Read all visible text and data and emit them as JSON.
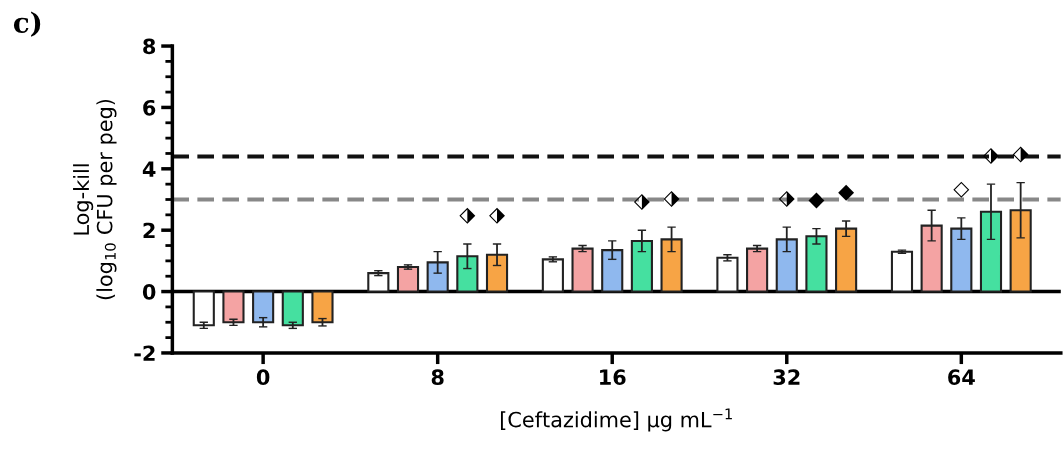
{
  "chart_data": {
    "type": "bar",
    "xlabel": "[Ceftazidime] μg mL$^{−1}$",
    "ylabel": "Log-kill\n(log$_{10}$ CFU per peg)",
    "categories": [
      "0",
      "8",
      "16",
      "32",
      "64"
    ],
    "series": [
      {
        "color": "#ffffff",
        "values": [
          -1.1,
          0.6,
          1.05,
          1.1,
          1.3
        ],
        "errors": [
          0.1,
          0.08,
          0.08,
          0.1,
          0.05
        ]
      },
      {
        "color": "#f4a3a3",
        "values": [
          -1.0,
          0.8,
          1.4,
          1.4,
          2.15
        ],
        "errors": [
          0.1,
          0.07,
          0.1,
          0.1,
          0.5
        ]
      },
      {
        "color": "#8fb8ee",
        "values": [
          -1.0,
          0.95,
          1.35,
          1.7,
          2.05
        ],
        "errors": [
          0.15,
          0.35,
          0.3,
          0.4,
          0.35
        ],
        "value_labels": [
          null,
          null,
          null,
          "⬗",
          "◇"
        ]
      },
      {
        "color": "#45e0a0",
        "values": [
          -1.1,
          1.15,
          1.65,
          1.8,
          2.6
        ],
        "errors": [
          0.1,
          0.4,
          0.35,
          0.25,
          0.9
        ],
        "value_labels": [
          null,
          "⬗",
          "⬗",
          "◆",
          "⬗"
        ]
      },
      {
        "color": "#f7a445",
        "values": [
          -1.0,
          1.2,
          1.7,
          2.05,
          2.65
        ],
        "errors": [
          0.12,
          0.35,
          0.4,
          0.25,
          0.9
        ],
        "value_labels": [
          null,
          "⬗",
          "⬗",
          "◆",
          "⬗"
        ]
      }
    ],
    "ylim": [
      -2,
      8
    ],
    "yticks": [
      {
        "value": -2,
        "label": "-2"
      },
      0,
      2,
      4,
      6,
      8
    ],
    "ref_lines": [
      {
        "axis": "y",
        "value": 0,
        "color": "#000000",
        "line_style": "solid"
      },
      {
        "axis": "y",
        "value": 4.4,
        "color": "#111111",
        "line_style": "dashed"
      },
      {
        "axis": "y",
        "value": 3.0,
        "color": "#888888",
        "line_style": "dashed"
      }
    ],
    "annotations": [
      "c)"
    ],
    "grid": false,
    "legend": false
  }
}
